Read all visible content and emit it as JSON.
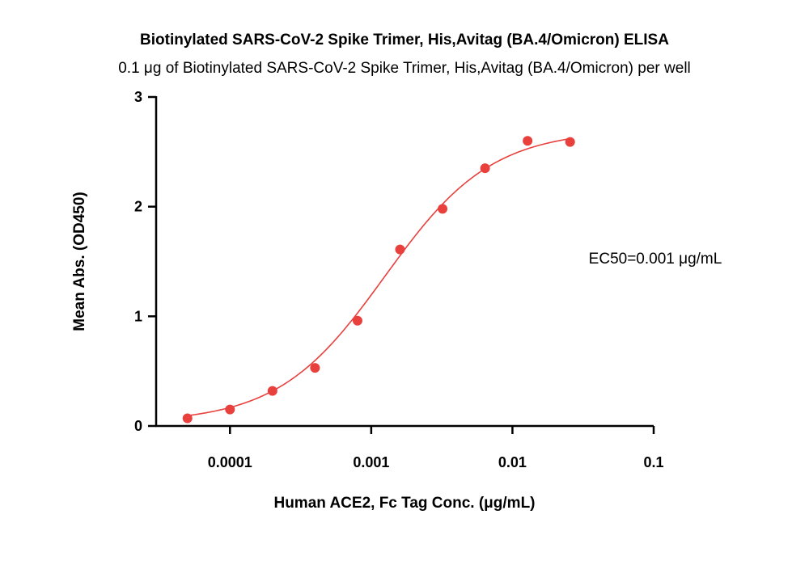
{
  "chart_data": {
    "type": "scatter",
    "title": "Biotinylated SARS-CoV-2 Spike Trimer, His,Avitag (BA.4/Omicron) ELISA",
    "subtitle": "0.1 μg of Biotinylated SARS-CoV-2 Spike Trimer, His,Avitag (BA.4/Omicron) per well",
    "xlabel": "Human ACE2, Fc Tag Conc. (μg/mL)",
    "ylabel": "Mean Abs. (OD450)",
    "x_scale": "log",
    "xlim": [
      3e-05,
      0.1
    ],
    "ylim": [
      0,
      3
    ],
    "x_ticks": [
      {
        "value": 0.0001,
        "label": "0.0001"
      },
      {
        "value": 0.001,
        "label": "0.001"
      },
      {
        "value": 0.01,
        "label": "0.01"
      },
      {
        "value": 0.1,
        "label": "0.1"
      }
    ],
    "y_ticks": [
      {
        "value": 0,
        "label": "0"
      },
      {
        "value": 1,
        "label": "1"
      },
      {
        "value": 2,
        "label": "2"
      },
      {
        "value": 3,
        "label": "3"
      }
    ],
    "grid": false,
    "legend": "none",
    "color": "#e8413d",
    "series": [
      {
        "x": [
          5e-05,
          0.0001,
          0.0002,
          0.0004,
          0.0008,
          0.0016,
          0.0032,
          0.0064,
          0.0128,
          0.0256
        ],
        "y": [
          0.07,
          0.15,
          0.32,
          0.53,
          0.96,
          1.61,
          1.98,
          2.35,
          2.6,
          2.59
        ],
        "fit": {
          "model": "4PL",
          "bottom": 0.03,
          "top": 2.7,
          "ec50": 0.00125,
          "hill": 1.15
        }
      }
    ],
    "annotations": [
      {
        "text": "EC50=0.001 μg/mL"
      }
    ]
  }
}
